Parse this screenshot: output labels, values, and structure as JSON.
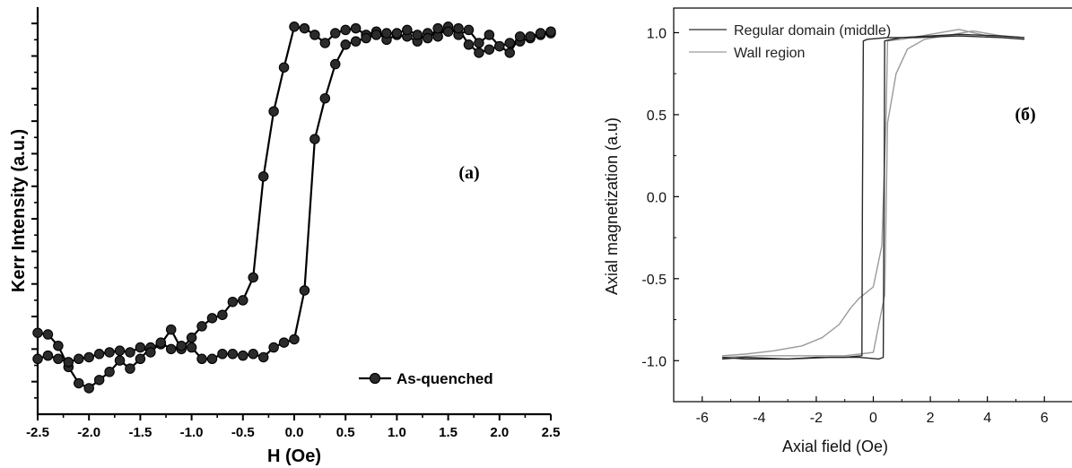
{
  "chart_data": [
    {
      "type": "line",
      "panel": "(a)",
      "xlabel": "H (Oe)",
      "ylabel": "Kerr Intensity (a.u.)",
      "xlim": [
        -2.5,
        2.5
      ],
      "ylim": [
        -1.4,
        1.1
      ],
      "x_ticks": [
        "-2.5",
        "-2.0",
        "-1.5",
        "-1.0",
        "-0.5",
        "0.0",
        "0.5",
        "1.0",
        "1.5",
        "2.0",
        "2.5"
      ],
      "show_y_tick_labels": false,
      "grid": false,
      "legend_position": "bottom-right",
      "series": [
        {
          "name": "As-quenched",
          "color": "#000000",
          "marker": "circle",
          "descending_branch": {
            "x": [
              2.5,
              2.4,
              2.3,
              2.2,
              2.1,
              2.0,
              1.9,
              1.8,
              1.7,
              1.6,
              1.5,
              1.4,
              1.3,
              1.2,
              1.1,
              1.0,
              0.9,
              0.8,
              0.7,
              0.6,
              0.5,
              0.4,
              0.3,
              0.2,
              0.1,
              0.0,
              -0.1,
              -0.2,
              -0.3,
              -0.4,
              -0.5,
              -0.6,
              -0.7,
              -0.8,
              -0.9,
              -1.0,
              -1.1,
              -1.2,
              -1.3,
              -1.4,
              -1.5,
              -1.6,
              -1.7,
              -1.8,
              -1.9,
              -2.0,
              -2.1,
              -2.2,
              -2.3,
              -2.4,
              -2.5
            ],
            "y": [
              0.94,
              0.93,
              0.91,
              0.89,
              0.88,
              0.86,
              0.93,
              0.88,
              0.96,
              0.93,
              0.98,
              0.92,
              0.94,
              0.89,
              0.92,
              0.93,
              0.9,
              0.95,
              0.93,
              0.97,
              0.96,
              0.94,
              0.88,
              0.93,
              0.97,
              0.98,
              0.73,
              0.46,
              0.06,
              -0.56,
              -0.7,
              -0.71,
              -0.79,
              -0.81,
              -0.86,
              -0.93,
              -1.0,
              -0.88,
              -0.97,
              -0.99,
              -1.06,
              -1.12,
              -1.07,
              -1.14,
              -1.19,
              -1.24,
              -1.21,
              -1.11,
              -0.98,
              -0.91,
              -0.9
            ]
          },
          "ascending_branch": {
            "x": [
              -2.5,
              -2.4,
              -2.3,
              -2.2,
              -2.1,
              -2.0,
              -1.9,
              -1.8,
              -1.7,
              -1.6,
              -1.5,
              -1.4,
              -1.3,
              -1.2,
              -1.1,
              -1.0,
              -0.9,
              -0.8,
              -0.7,
              -0.6,
              -0.5,
              -0.4,
              -0.3,
              -0.2,
              -0.1,
              0.0,
              0.1,
              0.2,
              0.3,
              0.4,
              0.5,
              0.6,
              0.7,
              0.8,
              0.9,
              1.0,
              1.1,
              1.2,
              1.3,
              1.4,
              1.5,
              1.6,
              1.7,
              1.8,
              1.9,
              2.0,
              2.1,
              2.2,
              2.3,
              2.4,
              2.5
            ],
            "y": [
              -1.06,
              -1.04,
              -1.06,
              -1.08,
              -1.06,
              -1.05,
              -1.03,
              -1.02,
              -1.01,
              -1.02,
              -0.99,
              -1.02,
              -0.96,
              -1.0,
              -0.98,
              -0.99,
              -1.06,
              -1.06,
              -1.03,
              -1.03,
              -1.04,
              -1.03,
              -1.05,
              -0.99,
              -0.96,
              -0.94,
              -0.64,
              0.29,
              0.54,
              0.75,
              0.87,
              0.89,
              0.91,
              0.93,
              0.94,
              0.94,
              0.96,
              0.93,
              0.91,
              0.97,
              0.95,
              0.97,
              0.87,
              0.82,
              0.84,
              0.86,
              0.82,
              0.92,
              0.92,
              0.94,
              0.95
            ]
          }
        }
      ]
    },
    {
      "type": "line",
      "panel": "(б)",
      "xlabel": "Axial field (Oe)",
      "ylabel": "Axial magnetization (a.u)",
      "xlim": [
        -7,
        7
      ],
      "ylim": [
        -1.25,
        1.15
      ],
      "x_ticks": [
        "-6",
        "-4",
        "-2",
        "0",
        "2",
        "4",
        "6"
      ],
      "y_ticks": [
        "-1.0",
        "-0.5",
        "0.0",
        "0.5",
        "1.0"
      ],
      "grid": false,
      "legend_position": "top-left",
      "series": [
        {
          "name": "Regular domain (middle)",
          "color": "#2a2a2a",
          "descending_branch": {
            "x": [
              5.3,
              4.5,
              3.0,
              1.5,
              0.5,
              -0.2,
              -0.35,
              -0.38,
              -0.4,
              -1.0,
              -2.0,
              -3.0,
              -4.5,
              -5.3
            ],
            "y": [
              0.96,
              0.97,
              0.98,
              0.97,
              0.97,
              0.96,
              0.95,
              0.0,
              -0.97,
              -0.98,
              -0.98,
              -0.99,
              -0.99,
              -0.98
            ]
          },
          "ascending_branch": {
            "x": [
              -5.3,
              -4.5,
              -3.0,
              -1.5,
              -0.5,
              0.2,
              0.35,
              0.38,
              0.4,
              1.0,
              2.0,
              3.0,
              4.5,
              5.3
            ],
            "y": [
              -0.99,
              -0.98,
              -0.99,
              -0.98,
              -0.98,
              -0.99,
              -0.98,
              0.0,
              0.95,
              0.97,
              0.98,
              0.99,
              0.98,
              0.97
            ]
          }
        },
        {
          "name": "Wall region",
          "color": "#9a9a9a",
          "descending_branch": {
            "x": [
              5.3,
              4.0,
              3.0,
              2.0,
              1.0,
              0.5,
              0.45,
              0.3,
              0.0,
              -0.5,
              -0.8,
              -1.2,
              -1.8,
              -2.5,
              -3.5,
              -4.5,
              -5.3
            ],
            "y": [
              0.97,
              0.98,
              1.02,
              0.99,
              0.96,
              0.95,
              0.5,
              -0.3,
              -0.55,
              -0.62,
              -0.68,
              -0.78,
              -0.86,
              -0.91,
              -0.94,
              -0.96,
              -0.97
            ]
          },
          "ascending_branch": {
            "x": [
              -5.3,
              -4.0,
              -2.5,
              -1.0,
              -0.5,
              0.0,
              0.4,
              0.5,
              0.6,
              0.8,
              1.2,
              1.8,
              2.5,
              3.5,
              4.5,
              5.3
            ],
            "y": [
              -0.98,
              -0.97,
              -0.97,
              -0.97,
              -0.96,
              -0.95,
              -0.6,
              0.45,
              0.55,
              0.75,
              0.9,
              0.96,
              0.98,
              1.01,
              0.98,
              0.97
            ]
          }
        }
      ]
    }
  ]
}
